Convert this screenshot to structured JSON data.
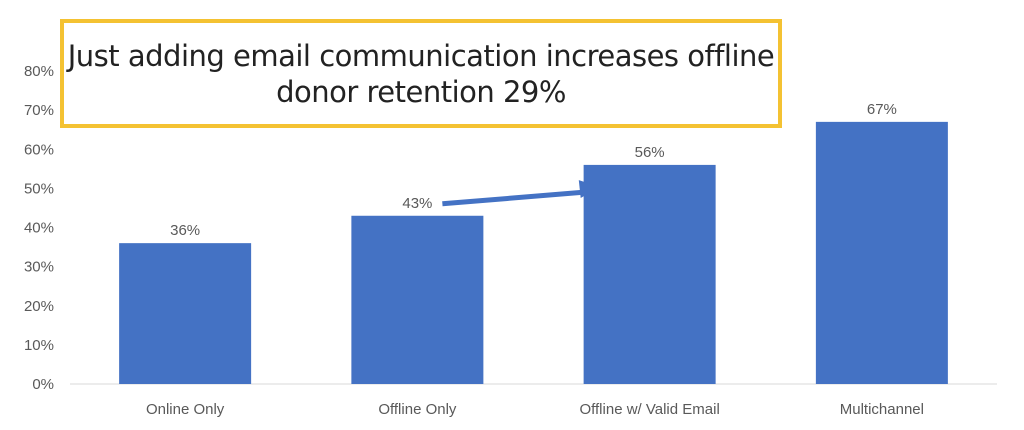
{
  "chart_data": {
    "type": "bar",
    "title": "",
    "xlabel": "",
    "ylabel": "",
    "categories": [
      "Online Only",
      "Offline Only",
      "Offline w/ Valid Email",
      "Multichannel"
    ],
    "values": [
      36,
      43,
      56,
      67
    ],
    "data_labels": [
      "36%",
      "43%",
      "56%",
      "67%"
    ],
    "ylim": [
      0,
      80
    ],
    "yticks": [
      "0%",
      "10%",
      "20%",
      "30%",
      "40%",
      "50%",
      "60%",
      "70%",
      "80%"
    ],
    "grid": false,
    "legend": "none",
    "bar_color": "#4472c4",
    "annotation": {
      "lines": [
        "Just adding email communication increases offline",
        "donor retention 29%"
      ],
      "border_color": "#f4c232",
      "arrow": {
        "from_category": "Offline Only",
        "to_category": "Offline w/ Valid Email",
        "color": "#4472c4"
      }
    }
  }
}
